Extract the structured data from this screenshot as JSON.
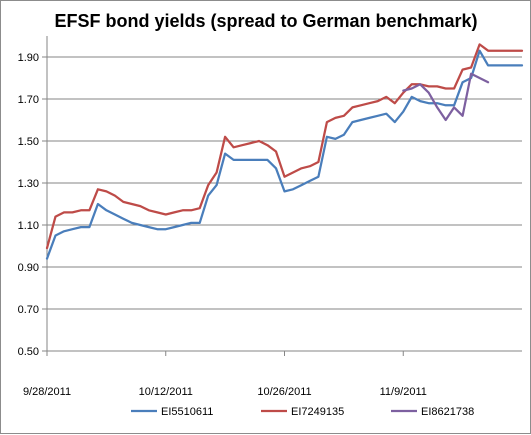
{
  "chart_data": {
    "type": "line",
    "title": "EFSF bond yields (spread to German benchmark)",
    "xlabel": "",
    "ylabel": "",
    "ylim": [
      0.5,
      2.0
    ],
    "yticks": [
      "0.50",
      "0.70",
      "0.90",
      "1.10",
      "1.30",
      "1.50",
      "1.70",
      "1.90"
    ],
    "xticks": [
      {
        "label": "9/28/2011",
        "day": 0
      },
      {
        "label": "10/12/2011",
        "day": 14
      },
      {
        "label": "10/26/2011",
        "day": 28
      },
      {
        "label": "11/9/2011",
        "day": 42
      }
    ],
    "grid": "horizontal",
    "legend": "bottom",
    "series": [
      {
        "name": "EI5510611",
        "color": "#4a7ebb",
        "x": [
          0,
          1,
          2,
          3,
          4,
          5,
          6,
          7,
          8,
          9,
          10,
          11,
          12,
          13,
          14,
          15,
          16,
          17,
          18,
          19,
          20,
          21,
          22,
          23,
          24,
          25,
          26,
          27,
          28,
          29,
          30,
          31,
          32,
          33,
          34,
          35,
          36,
          37,
          38,
          39,
          40,
          41,
          42,
          43,
          44,
          45,
          46,
          47,
          48,
          49,
          50,
          51,
          52,
          53,
          54,
          55,
          56
        ],
        "values": [
          0.94,
          1.05,
          1.07,
          1.08,
          1.09,
          1.09,
          1.2,
          1.17,
          1.15,
          1.13,
          1.11,
          1.1,
          1.09,
          1.08,
          1.08,
          1.09,
          1.1,
          1.11,
          1.11,
          1.24,
          1.29,
          1.44,
          1.41,
          1.41,
          1.41,
          1.41,
          1.41,
          1.37,
          1.26,
          1.27,
          1.29,
          1.31,
          1.33,
          1.52,
          1.51,
          1.53,
          1.59,
          1.6,
          1.61,
          1.62,
          1.63,
          1.59,
          1.64,
          1.71,
          1.69,
          1.68,
          1.68,
          1.67,
          1.67,
          1.78,
          1.8,
          1.93,
          1.86,
          1.86,
          1.86,
          1.86,
          1.86
        ]
      },
      {
        "name": "EI7249135",
        "color": "#be4b48",
        "x": [
          0,
          1,
          2,
          3,
          4,
          5,
          6,
          7,
          8,
          9,
          10,
          11,
          12,
          13,
          14,
          15,
          16,
          17,
          18,
          19,
          20,
          21,
          22,
          23,
          24,
          25,
          26,
          27,
          28,
          29,
          30,
          31,
          32,
          33,
          34,
          35,
          36,
          37,
          38,
          39,
          40,
          41,
          42,
          43,
          44,
          45,
          46,
          47,
          48,
          49,
          50,
          51,
          52,
          53,
          54,
          55,
          56
        ],
        "values": [
          0.99,
          1.14,
          1.16,
          1.16,
          1.17,
          1.17,
          1.27,
          1.26,
          1.24,
          1.21,
          1.2,
          1.19,
          1.17,
          1.16,
          1.15,
          1.16,
          1.17,
          1.17,
          1.18,
          1.29,
          1.35,
          1.52,
          1.47,
          1.48,
          1.49,
          1.5,
          1.48,
          1.45,
          1.33,
          1.35,
          1.37,
          1.38,
          1.4,
          1.59,
          1.61,
          1.62,
          1.66,
          1.67,
          1.68,
          1.69,
          1.71,
          1.68,
          1.73,
          1.77,
          1.77,
          1.76,
          1.76,
          1.75,
          1.75,
          1.84,
          1.85,
          1.96,
          1.93,
          1.93,
          1.93,
          1.93,
          1.93
        ]
      },
      {
        "name": "EI8621738",
        "color": "#7d60a0",
        "x": [
          42,
          43,
          44,
          45,
          46,
          47,
          48,
          49,
          50,
          51,
          52
        ],
        "values": [
          1.74,
          1.75,
          1.77,
          1.73,
          1.66,
          1.6,
          1.66,
          1.62,
          1.82,
          1.8,
          1.78
        ]
      }
    ]
  }
}
